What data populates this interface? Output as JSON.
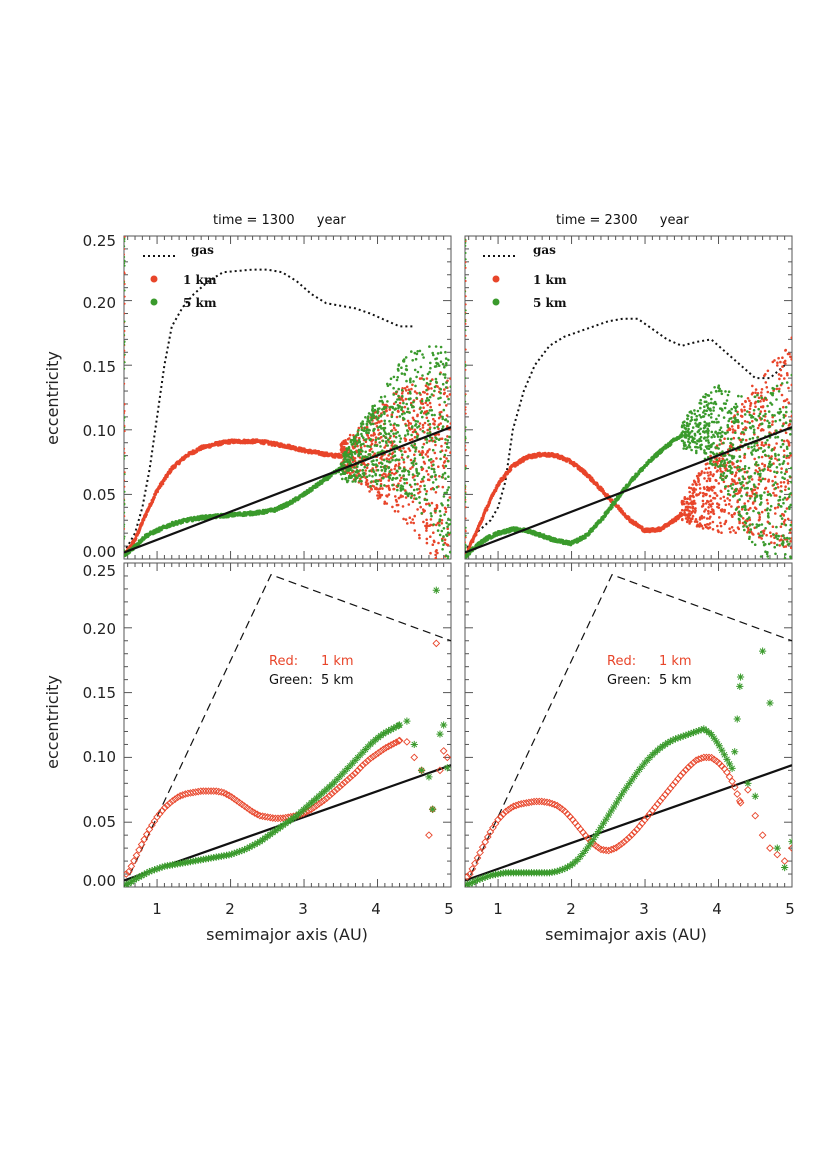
{
  "colors": {
    "red": "#e8452a",
    "green": "#3a9a2c",
    "black": "#111111",
    "frame": "#555555"
  },
  "x_axis_label": "semimajor axis (AU)",
  "y_axis_label": "eccentricity",
  "x_tick_labels": [
    "1",
    "2",
    "3",
    "4",
    "5"
  ],
  "y_tick_labels": [
    "0.00",
    "0.05",
    "0.10",
    "0.15",
    "0.20",
    "0.25"
  ],
  "top_legend": {
    "gas": "gas",
    "one_km": "1 km",
    "five_km": "5 km"
  },
  "bottom_legend": {
    "red_key": "Red:",
    "red_val": "1 km",
    "green_key": "Green:",
    "green_val": "5 km"
  },
  "chart_data": [
    {
      "id": "top-left",
      "type": "scatter",
      "title": {
        "prefix": "time = 1300",
        "unit": "year"
      },
      "xlim": [
        0.55,
        5.0
      ],
      "ylim": [
        0.0,
        0.25
      ],
      "xlabel": "",
      "ylabel": "eccentricity",
      "series": [
        {
          "name": "gas",
          "style": "dotted-line",
          "x": [
            0.55,
            0.7,
            0.8,
            0.9,
            1.0,
            1.1,
            1.2,
            1.35,
            1.5,
            1.7,
            1.9,
            2.1,
            2.3,
            2.5,
            2.7,
            2.9,
            3.1,
            3.3,
            3.5,
            3.7,
            3.9,
            4.1,
            4.3,
            4.5
          ],
          "y": [
            0.005,
            0.02,
            0.04,
            0.07,
            0.11,
            0.15,
            0.18,
            0.195,
            0.205,
            0.215,
            0.222,
            0.223,
            0.224,
            0.224,
            0.222,
            0.215,
            0.205,
            0.198,
            0.196,
            0.194,
            0.19,
            0.185,
            0.18,
            0.18
          ]
        },
        {
          "name": "1 km",
          "style": "points",
          "x": [
            0.55,
            0.7,
            0.85,
            1.0,
            1.2,
            1.4,
            1.6,
            1.8,
            2.0,
            2.2,
            2.4,
            2.6,
            2.8,
            3.0,
            3.2,
            3.4,
            3.6,
            3.8,
            4.0,
            4.2,
            4.4,
            4.6,
            4.8,
            5.0
          ],
          "y": [
            0.002,
            0.015,
            0.035,
            0.053,
            0.07,
            0.08,
            0.086,
            0.089,
            0.091,
            0.091,
            0.091,
            0.089,
            0.087,
            0.084,
            0.082,
            0.08,
            0.08,
            0.08,
            0.082,
            0.083,
            0.082,
            0.078,
            0.07,
            0.06
          ]
        },
        {
          "name": "5 km",
          "style": "points",
          "x": [
            0.55,
            0.7,
            0.85,
            1.0,
            1.2,
            1.4,
            1.6,
            1.8,
            2.0,
            2.2,
            2.4,
            2.6,
            2.8,
            3.0,
            3.2,
            3.4,
            3.6,
            3.8,
            4.0,
            4.2,
            4.4,
            4.6,
            4.8,
            5.0
          ],
          "y": [
            0.002,
            0.01,
            0.018,
            0.022,
            0.027,
            0.03,
            0.032,
            0.033,
            0.034,
            0.035,
            0.036,
            0.038,
            0.043,
            0.05,
            0.058,
            0.066,
            0.074,
            0.082,
            0.09,
            0.098,
            0.105,
            0.1,
            0.09,
            0.08
          ]
        },
        {
          "name": "reference",
          "style": "solid-line",
          "x": [
            0.55,
            5.0
          ],
          "y": [
            0.005,
            0.102
          ]
        }
      ]
    },
    {
      "id": "top-right",
      "type": "scatter",
      "title": {
        "prefix": "time = 2300",
        "unit": "year"
      },
      "xlim": [
        0.55,
        5.0
      ],
      "ylim": [
        0.0,
        0.25
      ],
      "xlabel": "",
      "ylabel": "",
      "series": [
        {
          "name": "gas",
          "style": "dotted-line",
          "x": [
            0.55,
            0.7,
            0.8,
            0.9,
            1.0,
            1.1,
            1.2,
            1.35,
            1.5,
            1.7,
            1.9,
            2.1,
            2.3,
            2.5,
            2.7,
            2.9,
            3.1,
            3.3,
            3.5,
            3.7,
            3.9,
            4.1,
            4.3,
            4.5,
            4.7,
            4.9
          ],
          "y": [
            0.005,
            0.02,
            0.025,
            0.03,
            0.04,
            0.06,
            0.1,
            0.13,
            0.15,
            0.165,
            0.172,
            0.176,
            0.18,
            0.184,
            0.186,
            0.186,
            0.178,
            0.17,
            0.165,
            0.168,
            0.17,
            0.16,
            0.15,
            0.14,
            0.14,
            0.15
          ]
        },
        {
          "name": "1 km",
          "style": "points",
          "x": [
            0.55,
            0.7,
            0.85,
            1.0,
            1.2,
            1.4,
            1.6,
            1.8,
            2.0,
            2.2,
            2.4,
            2.6,
            2.8,
            3.0,
            3.2,
            3.4,
            3.6,
            3.8,
            4.0,
            4.2,
            4.4,
            4.6,
            4.8,
            5.0
          ],
          "y": [
            0.002,
            0.02,
            0.04,
            0.058,
            0.072,
            0.079,
            0.081,
            0.08,
            0.075,
            0.066,
            0.054,
            0.042,
            0.03,
            0.022,
            0.023,
            0.03,
            0.04,
            0.048,
            0.055,
            0.065,
            0.075,
            0.08,
            0.085,
            0.09
          ]
        },
        {
          "name": "5 km",
          "style": "points",
          "x": [
            0.55,
            0.7,
            0.85,
            1.0,
            1.2,
            1.4,
            1.6,
            1.8,
            2.0,
            2.2,
            2.4,
            2.6,
            2.8,
            3.0,
            3.2,
            3.4,
            3.6,
            3.8,
            4.0,
            4.2,
            4.4,
            4.6,
            4.8,
            5.0
          ],
          "y": [
            0.002,
            0.01,
            0.016,
            0.02,
            0.023,
            0.022,
            0.018,
            0.014,
            0.012,
            0.018,
            0.03,
            0.045,
            0.06,
            0.072,
            0.083,
            0.092,
            0.099,
            0.102,
            0.1,
            0.085,
            0.07,
            0.065,
            0.06,
            0.06
          ]
        },
        {
          "name": "reference",
          "style": "solid-line",
          "x": [
            0.55,
            5.0
          ],
          "y": [
            0.005,
            0.102
          ]
        }
      ]
    },
    {
      "id": "bottom-left",
      "type": "scatter",
      "title": "",
      "xlim": [
        0.55,
        5.0
      ],
      "ylim": [
        0.0,
        0.25
      ],
      "xlabel": "semimajor axis (AU)",
      "ylabel": "eccentricity",
      "series": [
        {
          "name": "envelope",
          "style": "dashed-line",
          "x": [
            0.55,
            2.55,
            5.0
          ],
          "y": [
            0.0,
            0.241,
            0.19
          ]
        },
        {
          "name": "reference",
          "style": "solid-line",
          "x": [
            0.55,
            5.0
          ],
          "y": [
            0.005,
            0.094
          ]
        },
        {
          "name": "Red: 1 km",
          "style": "diamond",
          "x": [
            0.6,
            0.7,
            0.8,
            0.9,
            1.0,
            1.1,
            1.2,
            1.3,
            1.4,
            1.5,
            1.6,
            1.7,
            1.8,
            1.9,
            2.0,
            2.1,
            2.2,
            2.3,
            2.4,
            2.5,
            2.6,
            2.7,
            2.8,
            2.9,
            3.0,
            3.1,
            3.2,
            3.3,
            3.4,
            3.5,
            3.6,
            3.7,
            3.8,
            3.9,
            4.0,
            4.1,
            4.2,
            4.3,
            4.4,
            4.5,
            4.6,
            4.7,
            4.75,
            4.8,
            4.85,
            4.9,
            4.95
          ],
          "y": [
            0.01,
            0.022,
            0.034,
            0.045,
            0.054,
            0.061,
            0.066,
            0.07,
            0.072,
            0.073,
            0.074,
            0.074,
            0.074,
            0.073,
            0.07,
            0.066,
            0.062,
            0.058,
            0.055,
            0.054,
            0.053,
            0.053,
            0.054,
            0.055,
            0.057,
            0.06,
            0.064,
            0.068,
            0.073,
            0.078,
            0.083,
            0.088,
            0.094,
            0.099,
            0.103,
            0.107,
            0.11,
            0.113,
            0.112,
            0.1,
            0.09,
            0.04,
            0.06,
            0.188,
            0.09,
            0.105,
            0.1
          ]
        },
        {
          "name": "Green: 5 km",
          "style": "asterisk",
          "x": [
            0.6,
            0.7,
            0.8,
            0.9,
            1.0,
            1.1,
            1.2,
            1.3,
            1.4,
            1.5,
            1.6,
            1.7,
            1.8,
            1.9,
            2.0,
            2.1,
            2.2,
            2.3,
            2.4,
            2.5,
            2.6,
            2.7,
            2.8,
            2.9,
            3.0,
            3.1,
            3.2,
            3.3,
            3.4,
            3.5,
            3.6,
            3.7,
            3.8,
            3.9,
            4.0,
            4.1,
            4.2,
            4.3,
            4.4,
            4.5,
            4.6,
            4.7,
            4.75,
            4.8,
            4.85,
            4.9,
            4.95
          ],
          "y": [
            0.002,
            0.006,
            0.009,
            0.012,
            0.014,
            0.016,
            0.017,
            0.018,
            0.019,
            0.02,
            0.021,
            0.022,
            0.023,
            0.024,
            0.025,
            0.027,
            0.029,
            0.032,
            0.035,
            0.039,
            0.043,
            0.047,
            0.051,
            0.055,
            0.06,
            0.065,
            0.07,
            0.075,
            0.08,
            0.086,
            0.092,
            0.098,
            0.104,
            0.11,
            0.115,
            0.119,
            0.122,
            0.125,
            0.128,
            0.11,
            0.09,
            0.085,
            0.06,
            0.229,
            0.118,
            0.125,
            0.092
          ]
        }
      ]
    },
    {
      "id": "bottom-right",
      "type": "scatter",
      "title": "",
      "xlim": [
        0.55,
        5.0
      ],
      "ylim": [
        0.0,
        0.25
      ],
      "xlabel": "semimajor axis (AU)",
      "ylabel": "",
      "series": [
        {
          "name": "envelope",
          "style": "dashed-line",
          "x": [
            0.55,
            2.55,
            5.0
          ],
          "y": [
            0.0,
            0.241,
            0.19
          ]
        },
        {
          "name": "reference",
          "style": "solid-line",
          "x": [
            0.55,
            5.0
          ],
          "y": [
            0.005,
            0.094
          ]
        },
        {
          "name": "Red: 1 km",
          "style": "diamond",
          "x": [
            0.6,
            0.7,
            0.8,
            0.9,
            1.0,
            1.1,
            1.2,
            1.3,
            1.4,
            1.5,
            1.6,
            1.7,
            1.8,
            1.9,
            2.0,
            2.1,
            2.2,
            2.3,
            2.4,
            2.5,
            2.6,
            2.7,
            2.8,
            2.9,
            3.0,
            3.1,
            3.2,
            3.3,
            3.4,
            3.5,
            3.6,
            3.7,
            3.8,
            3.9,
            4.0,
            4.1,
            4.2,
            4.3,
            4.4,
            4.5,
            4.6,
            4.7,
            4.8,
            4.9,
            5.0
          ],
          "y": [
            0.008,
            0.02,
            0.032,
            0.043,
            0.052,
            0.058,
            0.062,
            0.064,
            0.065,
            0.066,
            0.066,
            0.065,
            0.063,
            0.059,
            0.053,
            0.046,
            0.039,
            0.033,
            0.029,
            0.028,
            0.03,
            0.034,
            0.039,
            0.045,
            0.052,
            0.059,
            0.066,
            0.073,
            0.08,
            0.087,
            0.093,
            0.098,
            0.1,
            0.1,
            0.096,
            0.09,
            0.08,
            0.065,
            0.075,
            0.055,
            0.04,
            0.03,
            0.025,
            0.02,
            0.03
          ]
        },
        {
          "name": "Green: 5 km",
          "style": "asterisk",
          "x": [
            0.6,
            0.7,
            0.8,
            0.9,
            1.0,
            1.1,
            1.2,
            1.3,
            1.4,
            1.5,
            1.6,
            1.7,
            1.8,
            1.9,
            2.0,
            2.1,
            2.2,
            2.3,
            2.4,
            2.5,
            2.6,
            2.7,
            2.8,
            2.9,
            3.0,
            3.1,
            3.2,
            3.3,
            3.4,
            3.5,
            3.6,
            3.7,
            3.8,
            3.9,
            4.0,
            4.1,
            4.2,
            4.3,
            4.4,
            4.5,
            4.6,
            4.7,
            4.8,
            4.9,
            5.0
          ],
          "y": [
            0.002,
            0.005,
            0.007,
            0.009,
            0.01,
            0.011,
            0.011,
            0.011,
            0.011,
            0.011,
            0.011,
            0.011,
            0.012,
            0.014,
            0.017,
            0.022,
            0.029,
            0.037,
            0.046,
            0.055,
            0.064,
            0.073,
            0.081,
            0.089,
            0.096,
            0.102,
            0.107,
            0.111,
            0.114,
            0.116,
            0.118,
            0.12,
            0.122,
            0.118,
            0.11,
            0.1,
            0.09,
            0.162,
            0.08,
            0.07,
            0.182,
            0.142,
            0.03,
            0.015,
            0.035
          ]
        }
      ]
    }
  ]
}
